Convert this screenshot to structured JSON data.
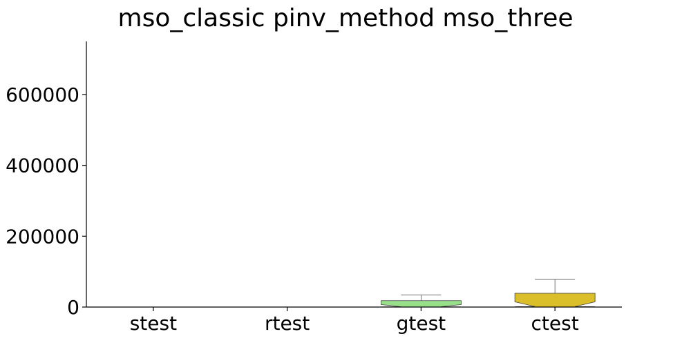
{
  "chart_data": {
    "type": "box",
    "title": "mso_classic pinv_method mso_three",
    "xlabel": "",
    "ylabel": "",
    "ylim": [
      0,
      750000
    ],
    "yticks": [
      0,
      200000,
      400000,
      600000
    ],
    "ytick_labels": [
      "0",
      "200000",
      "400000",
      "600000"
    ],
    "categories": [
      "stest",
      "rtest",
      "gtest",
      "ctest"
    ],
    "boxes": [
      {
        "category": "stest",
        "q1": 0,
        "median": 0,
        "q3": 0,
        "whisker_low": 0,
        "whisker_high": 0,
        "color": "#4c72b0"
      },
      {
        "category": "rtest",
        "q1": 0,
        "median": 0,
        "q3": 0,
        "whisker_low": 0,
        "whisker_high": 0,
        "color": "#dd8452"
      },
      {
        "category": "gtest",
        "q1": 500,
        "median": 1000,
        "q3": 18000,
        "whisker_low": 0,
        "whisker_high": 34000,
        "color": "#98df8a"
      },
      {
        "category": "ctest",
        "q1": 1000,
        "median": 1500,
        "q3": 39000,
        "whisker_low": 0,
        "whisker_high": 78000,
        "color": "#dbbf2a"
      }
    ],
    "grid": false,
    "legend": "none"
  }
}
